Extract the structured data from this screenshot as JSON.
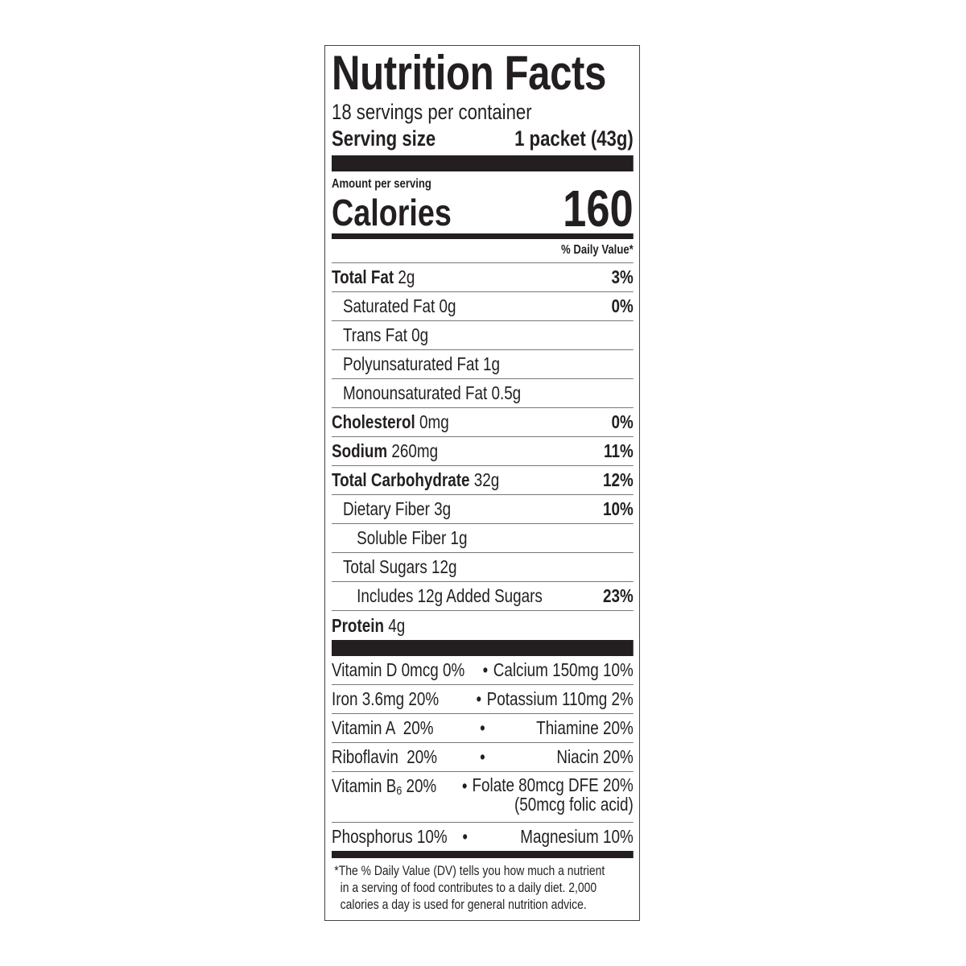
{
  "label": {
    "title": "Nutrition Facts",
    "servings_per_container": "18 servings per container",
    "serving_size_label": "Serving size",
    "serving_size_value": "1 packet (43g)",
    "amount_per_serving": "Amount per serving",
    "calories_label": "Calories",
    "calories_value": "160",
    "daily_value_header": "% Daily Value*",
    "nutrients": [
      {
        "name": "Total Fat",
        "amount": "2g",
        "dv": "3%"
      },
      {
        "name": "Saturated Fat 0g",
        "dv": "0%"
      },
      {
        "name": "Trans Fat 0g"
      },
      {
        "name": "Polyunsaturated Fat 1g"
      },
      {
        "name": "Monounsaturated Fat 0.5g"
      },
      {
        "name": "Cholesterol",
        "amount": "0mg",
        "dv": "0%"
      },
      {
        "name": "Sodium",
        "amount": "260mg",
        "dv": "11%"
      },
      {
        "name": "Total Carbohydrate",
        "amount": "32g",
        "dv": "12%"
      },
      {
        "name": "Dietary Fiber 3g",
        "dv": "10%"
      },
      {
        "name": "Soluble Fiber 1g"
      },
      {
        "name": "Total Sugars 12g"
      },
      {
        "name": "Includes 12g Added Sugars",
        "dv": "23%"
      },
      {
        "name": "Protein",
        "amount": "4g"
      }
    ],
    "vitamins": [
      {
        "left": "Vitamin D 0mcg 0%",
        "right": "Calcium 150mg 10%"
      },
      {
        "left": "Iron 3.6mg 20%",
        "right": "Potassium 110mg 2%"
      },
      {
        "left": "Vitamin A  20%",
        "right": "Thiamine 20%"
      },
      {
        "left": "Riboflavin  20%",
        "right": "Niacin 20%"
      },
      {
        "left_prefix": "Vitamin B",
        "left_sub": "6",
        "left_suffix": " 20%",
        "right": "Folate 80mcg DFE 20%",
        "right_line2": "(50mcg folic acid)"
      },
      {
        "left": "Phosphorus 10%",
        "right": "Magnesium 10%"
      }
    ],
    "bullet": "•",
    "footnote": [
      "*The % Daily Value (DV) tells you how much a nutrient",
      "in a serving of food contributes to a daily diet. 2,000",
      "calories a day is used for general nutrition advice."
    ]
  }
}
